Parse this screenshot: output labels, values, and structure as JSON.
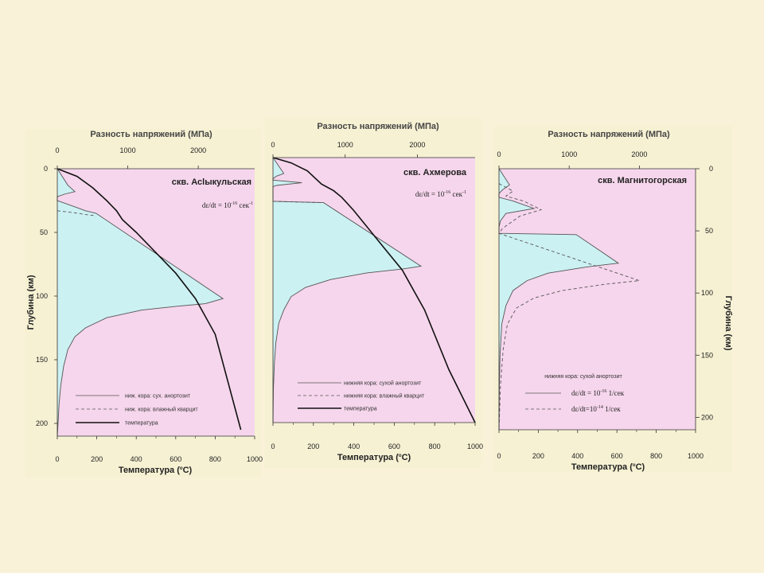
{
  "colors": {
    "background": "#faf2d8",
    "panel": "#f6f1d3",
    "plot_bg": "#f6d6ec",
    "dry_fill": "#ccf1f3",
    "curve": "#555555",
    "temperature": "#111111",
    "label_gray": "#444444"
  },
  "labels": {
    "stress_axis": "Разность напряжений (МПа)",
    "temperature_axis": "Температура (",
    "temperature_unit_sup": "o",
    "temperature_unit": "C)",
    "depth_axis": "Глубина (км)"
  },
  "chart_data": [
    {
      "type": "line",
      "well": "скв. Асlыкульская",
      "rate_text": "dε/dt = 10",
      "rate_exp": "-16",
      "rate_unit": "сек",
      "rate_unit_exp": "-1",
      "x_bottom": {
        "label": "Температура (°C)",
        "range": [
          0,
          1000
        ],
        "ticks": [
          0,
          200,
          400,
          600,
          800,
          1000
        ]
      },
      "x_top": {
        "label": "Разность напряжений (МПа)",
        "range": [
          0,
          2800
        ],
        "ticks": [
          0,
          1000,
          2000
        ]
      },
      "y": {
        "label": "Глубина (км)",
        "range": [
          0,
          210
        ],
        "ticks": [
          0,
          50,
          100,
          150,
          200
        ],
        "inverted": true
      },
      "legend": [
        "ниж. кора: сух. анортозит",
        "ниж. кора: влажный кварцит",
        "температура"
      ],
      "series": [
        {
          "name": "ниж. кора: сух. анортозит",
          "style": "solid",
          "fill": true,
          "points": [
            [
              0,
              0
            ],
            [
              150,
              13
            ],
            [
              250,
              18
            ],
            [
              100,
              20
            ],
            [
              0,
              22
            ],
            [
              0,
              25
            ],
            [
              300,
              31
            ],
            [
              400,
              33
            ],
            [
              550,
              35
            ],
            [
              2350,
              102
            ],
            [
              2100,
              106
            ],
            [
              1700,
              108
            ],
            [
              1200,
              111
            ],
            [
              700,
              117
            ],
            [
              400,
              125
            ],
            [
              250,
              132
            ],
            [
              150,
              142
            ],
            [
              90,
              155
            ],
            [
              50,
              170
            ],
            [
              25,
              185
            ],
            [
              10,
              200
            ],
            [
              0,
              210
            ]
          ]
        },
        {
          "name": "ниж. кора: влажный кварцит",
          "style": "dashed",
          "fill": false,
          "points": [
            [
              0,
              33
            ],
            [
              150,
              34
            ],
            [
              300,
              35
            ],
            [
              400,
              36
            ],
            [
              550,
              37
            ]
          ]
        },
        {
          "name": "температура",
          "style": "solid-heavy",
          "fill": false,
          "points": [
            [
              0,
              0
            ],
            [
              100,
              6
            ],
            [
              180,
              15
            ],
            [
              250,
              25
            ],
            [
              300,
              33
            ],
            [
              330,
              40
            ],
            [
              400,
              50
            ],
            [
              500,
              66
            ],
            [
              600,
              82
            ],
            [
              700,
              102
            ],
            [
              800,
              130
            ],
            [
              930,
              205
            ]
          ]
        }
      ]
    },
    {
      "type": "line",
      "well": "скв. Ахмерова",
      "rate_text": "dε/dt = 10",
      "rate_exp": "-16",
      "rate_unit": "сек",
      "rate_unit_exp": "-1",
      "x_bottom": {
        "label": "Температура (°C)",
        "range": [
          0,
          1000
        ],
        "ticks": [
          0,
          200,
          400,
          600,
          800,
          1000
        ]
      },
      "x_top": {
        "label": "Разность напряжений (МПа)",
        "range": [
          0,
          2800
        ],
        "ticks": [
          0,
          1000,
          2000
        ]
      },
      "y": {
        "range": [
          0,
          200
        ],
        "inverted": true
      },
      "legend": [
        "нижняя кора: сухой анортозит",
        "нижняя кора: влажный кварцит",
        "температура"
      ],
      "series": [
        {
          "name": "нижняя кора: сухой анортозит",
          "style": "solid",
          "fill": true,
          "points": [
            [
              0,
              0
            ],
            [
              150,
              12
            ],
            [
              50,
              14
            ],
            [
              0,
              16
            ],
            [
              0,
              17
            ],
            [
              400,
              19
            ],
            [
              50,
              21
            ],
            [
              0,
              22
            ],
            [
              0,
              33
            ],
            [
              700,
              34
            ],
            [
              2050,
              82
            ],
            [
              1800,
              84
            ],
            [
              1300,
              87
            ],
            [
              800,
              92
            ],
            [
              450,
              98
            ],
            [
              250,
              105
            ],
            [
              150,
              115
            ],
            [
              80,
              125
            ],
            [
              40,
              140
            ],
            [
              20,
              155
            ],
            [
              5,
              175
            ],
            [
              0,
              200
            ]
          ]
        },
        {
          "name": "нижняя кора: влажный кварцит",
          "style": "dashed",
          "fill": false,
          "points": [
            [
              0,
              33
            ],
            [
              300,
              33.5
            ],
            [
              700,
              34
            ]
          ]
        },
        {
          "name": "температура",
          "style": "solid-heavy",
          "fill": false,
          "points": [
            [
              0,
              0
            ],
            [
              90,
              4
            ],
            [
              170,
              10
            ],
            [
              240,
              20
            ],
            [
              300,
              25
            ],
            [
              340,
              30
            ],
            [
              400,
              40
            ],
            [
              480,
              55
            ],
            [
              560,
              70
            ],
            [
              640,
              85
            ],
            [
              750,
              115
            ],
            [
              870,
              160
            ],
            [
              1000,
              200
            ]
          ]
        }
      ]
    },
    {
      "type": "line",
      "well": "скв. Магнитогорская",
      "x_bottom": {
        "label": "Температура (°C)",
        "range": [
          0,
          1000
        ],
        "ticks": [
          0,
          200,
          400,
          600,
          800,
          1000
        ]
      },
      "x_top": {
        "label": "Разность напряжений (МПа)",
        "range": [
          0,
          2800
        ],
        "ticks": [
          0,
          1000,
          2000
        ]
      },
      "y": {
        "label": "Глубина (км)",
        "range": [
          0,
          210
        ],
        "ticks": [
          0,
          50,
          100,
          150,
          200
        ],
        "inverted": true,
        "side": "right"
      },
      "legend_title": "нижняя кора: сухой анортозит",
      "legend": [
        {
          "text": "dε/dt = 10",
          "exp": "-16",
          "unit": "1/сек",
          "style": "solid"
        },
        {
          "text": "dε/dt=10",
          "exp": "-14",
          "unit": "1/сек",
          "style": "dashed"
        }
      ],
      "series": [
        {
          "name": "dε/dt = 10-16 1/сек",
          "style": "solid",
          "fill": true,
          "points": [
            [
              0,
              0
            ],
            [
              150,
              13
            ],
            [
              50,
              17
            ],
            [
              0,
              20
            ],
            [
              0,
              23
            ],
            [
              200,
              26
            ],
            [
              500,
              32
            ],
            [
              100,
              36
            ],
            [
              20,
              42
            ],
            [
              0,
              47
            ],
            [
              0,
              52
            ],
            [
              1100,
              53
            ],
            [
              1700,
              76
            ],
            [
              1250,
              79
            ],
            [
              700,
              84
            ],
            [
              400,
              90
            ],
            [
              200,
              98
            ],
            [
              100,
              110
            ],
            [
              40,
              125
            ],
            [
              15,
              150
            ],
            [
              5,
              175
            ],
            [
              0,
              210
            ]
          ]
        },
        {
          "name": "dε/dt=10-14 1/сек",
          "style": "dashed",
          "fill": false,
          "points": [
            [
              0,
              12
            ],
            [
              200,
              18
            ],
            [
              100,
              22
            ],
            [
              350,
              26
            ],
            [
              600,
              33
            ],
            [
              300,
              38
            ],
            [
              50,
              48
            ],
            [
              0,
              52
            ],
            [
              2000,
              90
            ],
            [
              1500,
              93
            ],
            [
              900,
              98
            ],
            [
              500,
              104
            ],
            [
              250,
              112
            ],
            [
              120,
              125
            ],
            [
              60,
              145
            ],
            [
              20,
              175
            ],
            [
              0,
              210
            ]
          ]
        }
      ]
    }
  ]
}
